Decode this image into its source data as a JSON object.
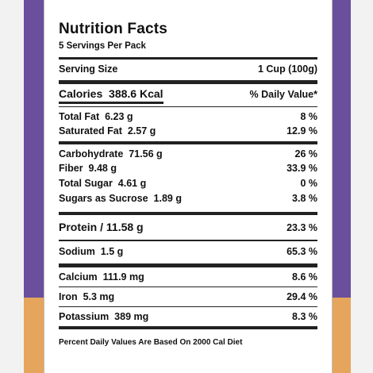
{
  "title": "Nutrition Facts",
  "servings": "5 Servings Per Pack",
  "serving_size": {
    "label": "Serving Size",
    "value": "1 Cup (100g)"
  },
  "calories": {
    "label": "Calories",
    "value": "388.6 Kcal"
  },
  "daily_value_header": "% Daily Value*",
  "nutrients": {
    "total_fat": {
      "label": "Total Fat",
      "amount": "6.23 g",
      "dv": "8 %"
    },
    "saturated_fat": {
      "label": "Saturated Fat",
      "amount": "2.57 g",
      "dv": "12.9 %"
    },
    "carbohydrate": {
      "label": "Carbohydrate",
      "amount": "71.56 g",
      "dv": "26 %"
    },
    "fiber": {
      "label": "Fiber",
      "amount": "9.48 g",
      "dv": "33.9 %"
    },
    "total_sugar": {
      "label": "Total Sugar",
      "amount": "4.61 g",
      "dv": "0 %"
    },
    "sugars_sucrose": {
      "label": "Sugars as Sucrose",
      "amount": "1.89 g",
      "dv": "3.8 %"
    },
    "protein": {
      "label": "Protein /",
      "amount": "11.58 g",
      "dv": "23.3 %"
    },
    "sodium": {
      "label": "Sodium",
      "amount": "1.5 g",
      "dv": "65.3 %"
    },
    "calcium": {
      "label": "Calcium",
      "amount": "111.9 mg",
      "dv": "8.6 %"
    },
    "iron": {
      "label": "Iron",
      "amount": "5.3 mg",
      "dv": "29.4 %"
    },
    "potassium": {
      "label": "Potassium",
      "amount": "389 mg",
      "dv": "8.3 %"
    }
  },
  "footer": "Percent Daily Values Are Based On 2000 Cal Diet",
  "colors": {
    "purple": "#6a4f9d",
    "orange": "#e6a55c"
  }
}
